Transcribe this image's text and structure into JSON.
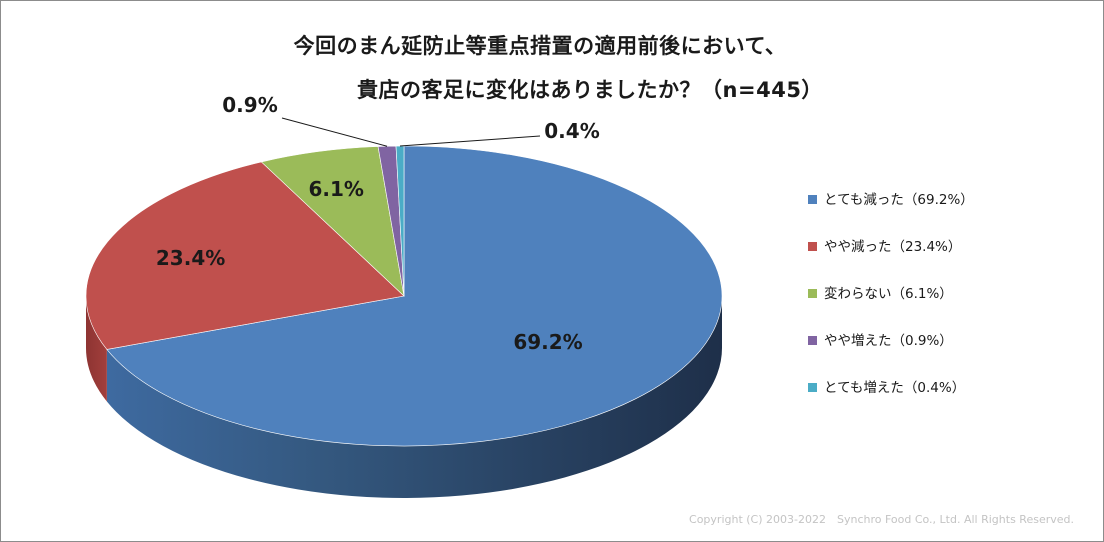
{
  "chart_data": {
    "type": "pie",
    "title_lines": [
      "今回のまん延防止等重点措置の適用前後において、",
      "貴店の客足に変化はありましたか？（n=445）"
    ],
    "slices": [
      {
        "name": "とても減った（69.2%）",
        "value": 69.2,
        "data_label": "69.2%",
        "color": "#4f81bd"
      },
      {
        "name": "やや減った（23.4%）",
        "value": 23.4,
        "data_label": "23.4%",
        "color": "#c0504d"
      },
      {
        "name": "変わらない（6.1%）",
        "value": 6.1,
        "data_label": "6.1%",
        "color": "#9bbb59"
      },
      {
        "name": "やや増えた（0.9%）",
        "value": 0.9,
        "data_label": "0.9%",
        "color": "#8064a2"
      },
      {
        "name": "とても増えた（0.4%）",
        "value": 0.4,
        "data_label": "0.4%",
        "color": "#4bacc6"
      }
    ],
    "style": "3d-pie",
    "legend_position": "right"
  },
  "copyright": "Copyright (C) 2003-2022　Synchro Food Co., Ltd. All Rights Reserved."
}
